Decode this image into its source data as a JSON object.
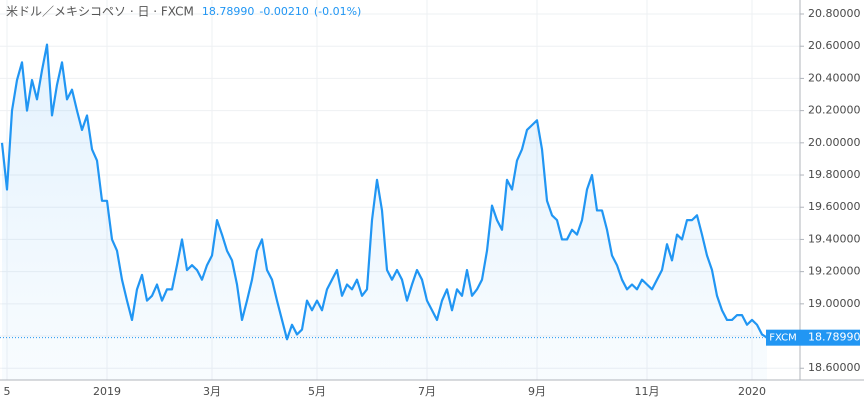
{
  "chart_data": {
    "type": "area",
    "header": {
      "symbol": "米ドル／メキシコペソ · 日 · FXCM",
      "price": "18.78990",
      "change": "-0.00210",
      "change_pct": "(-0.01%)"
    },
    "source_tag": "FXCM",
    "last_price": {
      "value": 18.7899,
      "label": "18.78990"
    },
    "categories": [
      null,
      "5",
      null,
      null,
      null,
      null,
      null,
      null,
      null,
      null,
      null,
      null,
      null,
      null,
      null,
      null,
      null,
      null,
      null,
      null,
      null,
      "2019",
      null,
      null,
      null,
      null,
      null,
      null,
      null,
      null,
      null,
      null,
      null,
      null,
      null,
      null,
      null,
      null,
      null,
      null,
      null,
      null,
      "3月",
      null,
      null,
      null,
      null,
      null,
      null,
      null,
      null,
      null,
      null,
      null,
      null,
      null,
      null,
      null,
      null,
      null,
      null,
      null,
      null,
      "5月",
      null,
      null,
      null,
      null,
      null,
      null,
      null,
      null,
      null,
      null,
      null,
      null,
      null,
      null,
      null,
      null,
      null,
      null,
      null,
      null,
      null,
      "7月",
      null,
      null,
      null,
      null,
      null,
      null,
      null,
      null,
      null,
      null,
      null,
      null,
      null,
      null,
      null,
      null,
      null,
      null,
      null,
      null,
      null,
      "9月",
      null,
      null,
      null,
      null,
      null,
      null,
      null,
      null,
      null,
      null,
      null,
      null,
      null,
      null,
      null,
      null,
      null,
      null,
      null,
      null,
      null,
      "11月",
      null,
      null,
      null,
      null,
      null,
      null,
      null,
      null,
      null,
      null,
      null,
      null,
      null,
      null,
      null,
      null,
      null,
      null,
      null,
      null,
      "2020",
      null,
      null,
      null
    ],
    "series": [
      {
        "name": "USD/MXN",
        "color": "#2196f3",
        "values": [
          20.0,
          19.71,
          20.2,
          20.39,
          20.5,
          20.2,
          20.39,
          20.27,
          20.45,
          20.61,
          20.17,
          20.36,
          20.5,
          20.27,
          20.33,
          20.2,
          20.08,
          20.17,
          19.96,
          19.89,
          19.64,
          19.64,
          19.4,
          19.33,
          19.15,
          19.02,
          18.9,
          19.09,
          19.18,
          19.02,
          19.05,
          19.12,
          19.02,
          19.09,
          19.09,
          19.24,
          19.4,
          19.21,
          19.24,
          19.21,
          19.15,
          19.24,
          19.3,
          19.52,
          19.43,
          19.33,
          19.27,
          19.12,
          18.9,
          19.02,
          19.15,
          19.33,
          19.4,
          19.21,
          19.15,
          19.02,
          18.9,
          18.78,
          18.87,
          18.81,
          18.84,
          19.02,
          18.96,
          19.02,
          18.96,
          19.09,
          19.15,
          19.21,
          19.05,
          19.12,
          19.09,
          19.15,
          19.05,
          19.09,
          19.52,
          19.77,
          19.58,
          19.21,
          19.15,
          19.21,
          19.15,
          19.02,
          19.12,
          19.21,
          19.15,
          19.02,
          18.96,
          18.9,
          19.02,
          19.09,
          18.96,
          19.09,
          19.05,
          19.21,
          19.05,
          19.09,
          19.15,
          19.33,
          19.61,
          19.52,
          19.46,
          19.77,
          19.71,
          19.89,
          19.96,
          20.08,
          20.11,
          20.14,
          19.96,
          19.64,
          19.55,
          19.52,
          19.4,
          19.4,
          19.46,
          19.43,
          19.52,
          19.71,
          19.8,
          19.58,
          19.58,
          19.46,
          19.3,
          19.24,
          19.15,
          19.09,
          19.12,
          19.09,
          19.15,
          19.12,
          19.09,
          19.15,
          19.21,
          19.37,
          19.27,
          19.43,
          19.4,
          19.52,
          19.52,
          19.55,
          19.43,
          19.3,
          19.21,
          19.05,
          18.96,
          18.9,
          18.9,
          18.93,
          18.93,
          18.87,
          18.9,
          18.87,
          18.81,
          18.7899
        ]
      }
    ],
    "ylim": [
      18.527,
      20.887
    ],
    "yticks": [
      {
        "value": 18.6,
        "label": "18.60000"
      },
      {
        "value": 18.8,
        "label": "18.80000"
      },
      {
        "value": 19.0,
        "label": "19.00000"
      },
      {
        "value": 19.2,
        "label": "19.20000"
      },
      {
        "value": 19.4,
        "label": "19.40000"
      },
      {
        "value": 19.6,
        "label": "19.60000"
      },
      {
        "value": 19.8,
        "label": "19.80000"
      },
      {
        "value": 20.0,
        "label": "20.00000"
      },
      {
        "value": 20.2,
        "label": "20.20000"
      },
      {
        "value": 20.4,
        "label": "20.40000"
      },
      {
        "value": 20.6,
        "label": "20.60000"
      },
      {
        "value": 20.8,
        "label": "20.80000"
      }
    ],
    "grid": true
  }
}
